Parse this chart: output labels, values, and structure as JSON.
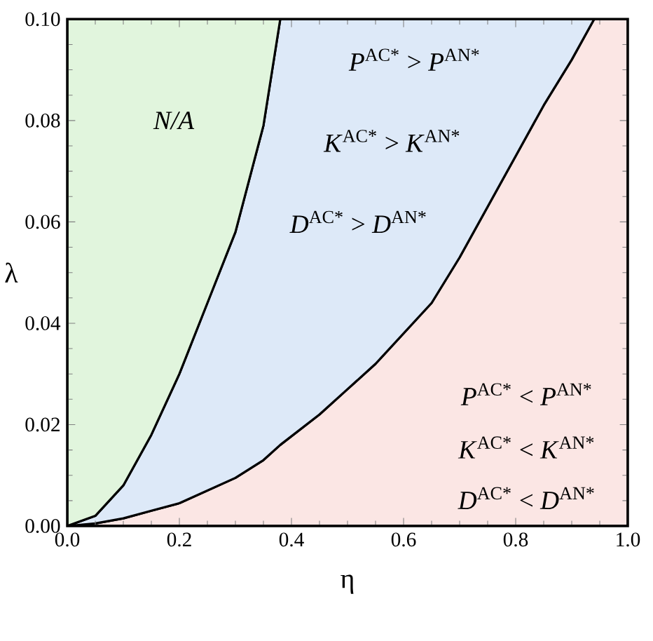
{
  "chart_data": {
    "type": "area",
    "stacked": true,
    "xlabel": "η",
    "ylabel": "λ",
    "x": [
      0,
      0.05,
      0.1,
      0.15,
      0.2,
      0.25,
      0.3,
      0.35,
      0.38,
      0.45,
      0.5,
      0.55,
      0.6,
      0.65,
      0.7,
      0.75,
      0.8,
      0.85,
      0.9,
      0.94,
      1.0
    ],
    "series": [
      {
        "color": "#fbe6e4",
        "values": [
          0,
          0.0005,
          0.0015,
          0.003,
          0.0045,
          0.007,
          0.0095,
          0.013,
          0.016,
          0.022,
          0.027,
          0.032,
          0.038,
          0.044,
          0.053,
          0.063,
          0.073,
          0.083,
          0.092,
          0.1,
          0.1
        ]
      },
      {
        "color": "#dde9f8",
        "values": [
          0,
          0.0015,
          0.0065,
          0.015,
          0.0255,
          0.037,
          0.0485,
          0.066,
          0.084,
          0.078,
          0.073,
          0.068,
          0.062,
          0.056,
          0.047,
          0.037,
          0.027,
          0.017,
          0.008,
          0,
          null
        ]
      },
      {
        "color": "#e1f5dd",
        "values": [
          0.1,
          0.098,
          0.092,
          0.082,
          0.07,
          0.056,
          0.042,
          0.021,
          0,
          null,
          null,
          null,
          null,
          null,
          null,
          null,
          null,
          null,
          null,
          null,
          null
        ]
      }
    ],
    "xlim": [
      0,
      1
    ],
    "ylim": [
      0,
      0.1
    ],
    "xticks": [
      {
        "value": 0,
        "label": "0.0"
      },
      0.2,
      0.4,
      0.6,
      0.8,
      {
        "value": 1,
        "label": "1.0"
      }
    ],
    "yticks": [
      {
        "value": 0,
        "label": "0.00"
      },
      0.02,
      0.04,
      0.06,
      0.08,
      {
        "value": 0.1,
        "label": "0.10"
      }
    ],
    "grid": false,
    "annotations": [
      "N/A",
      "*P*$^{AC*}$ > *P*$^{AN*}$",
      "*K*$^{AC*}$ > *K*$^{AN*}$",
      "*D*$^{AC*}$ > *D*$^{AN*}$",
      "*P*$^{AC*}$ < *P*$^{AN*}$",
      "*K*$^{AC*}$ < *K*$^{AN*}$",
      "*D*$^{AC*}$ < *D*$^{AN*}$"
    ]
  }
}
